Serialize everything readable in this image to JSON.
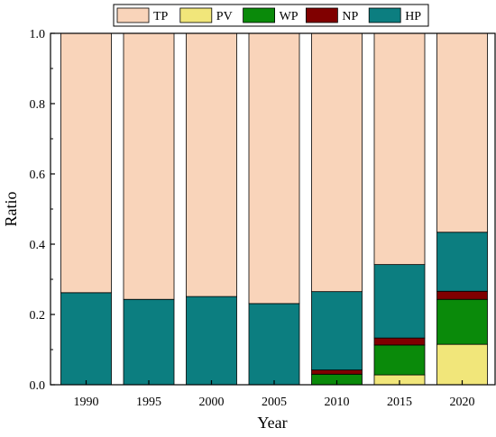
{
  "chart_data": {
    "type": "bar",
    "stacked": true,
    "xlabel": "Year",
    "ylabel": "Ratio",
    "ylim": [
      0,
      1.0
    ],
    "yticks": [
      "0.0",
      "0.2",
      "0.4",
      "0.6",
      "0.8",
      "1.0"
    ],
    "categories": [
      "1990",
      "1995",
      "2000",
      "2005",
      "2010",
      "2015",
      "2020"
    ],
    "legend_position": "top",
    "series": [
      {
        "name": "PV",
        "color": "#f1e67a",
        "values": [
          0,
          0,
          0,
          0,
          0,
          0.028,
          0.115
        ]
      },
      {
        "name": "WP",
        "color": "#0a8a0a",
        "values": [
          0,
          0,
          0,
          0,
          0.03,
          0.085,
          0.128
        ]
      },
      {
        "name": "NP",
        "color": "#800000",
        "values": [
          0,
          0,
          0,
          0,
          0.012,
          0.02,
          0.023
        ]
      },
      {
        "name": "HP",
        "color": "#0c7e80",
        "values": [
          0.262,
          0.243,
          0.251,
          0.231,
          0.223,
          0.209,
          0.168
        ]
      },
      {
        "name": "TP",
        "color": "#f9d4ba",
        "values": [
          0.738,
          0.757,
          0.749,
          0.769,
          0.735,
          0.658,
          0.566
        ]
      }
    ],
    "legend_order": [
      "TP",
      "PV",
      "WP",
      "NP",
      "HP"
    ]
  }
}
